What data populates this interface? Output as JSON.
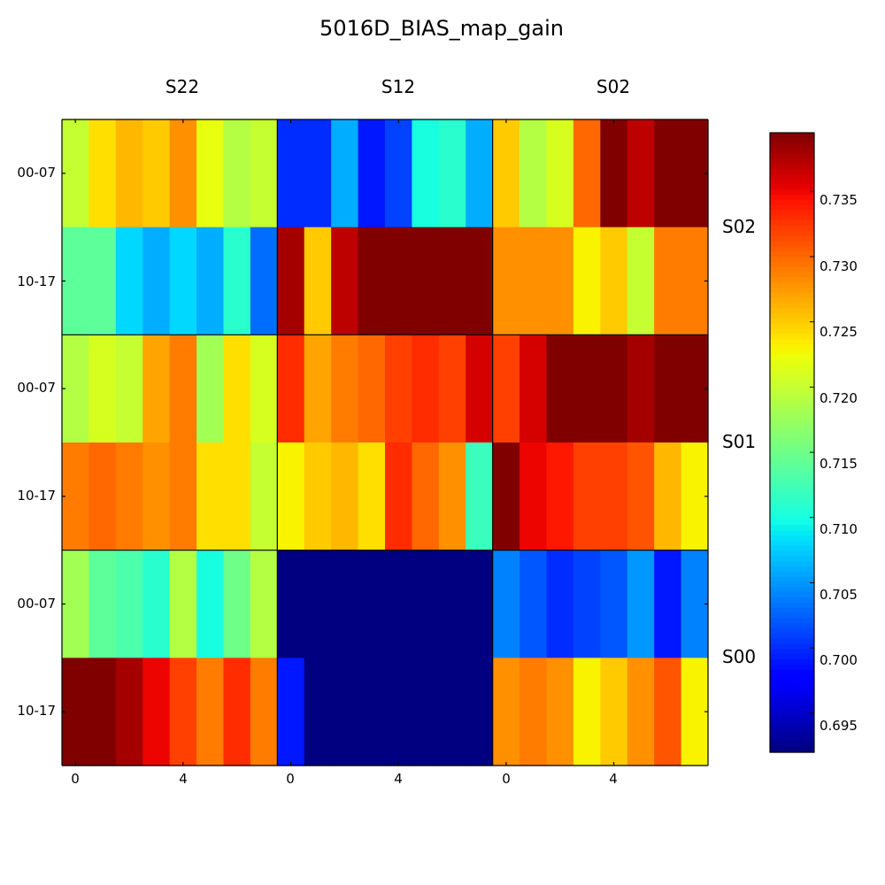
{
  "chart_data": {
    "type": "heatmap",
    "title": "5016D_BIAS_map_gain",
    "columns": [
      "S22",
      "S12",
      "S02"
    ],
    "rows": [
      "S02",
      "S01",
      "S00"
    ],
    "row_tick_labels": [
      "00-07",
      "10-17"
    ],
    "x_tick_labels": [
      "0",
      "4"
    ],
    "colormap": "jet",
    "colorbar": {
      "vmin": 0.692,
      "vmax": 0.7395,
      "ticks": [
        "0.695",
        "0.700",
        "0.705",
        "0.710",
        "0.715",
        "0.720",
        "0.725",
        "0.730",
        "0.735"
      ]
    },
    "values": [
      [
        0.72,
        0.724,
        0.726,
        0.725,
        0.728,
        0.722,
        0.719,
        0.72,
        0.7,
        0.7,
        0.706,
        0.699,
        0.701,
        0.71,
        0.711,
        0.706,
        0.725,
        0.719,
        0.721,
        0.73,
        0.7395,
        0.737,
        0.7395,
        0.7395
      ],
      [
        0.714,
        0.714,
        0.708,
        0.706,
        0.708,
        0.706,
        0.711,
        0.703,
        0.738,
        0.725,
        0.737,
        0.7395,
        0.7395,
        0.7395,
        0.7395,
        0.7395,
        0.728,
        0.728,
        0.728,
        0.723,
        0.725,
        0.72,
        0.729,
        0.729
      ],
      [
        0.719,
        0.721,
        0.72,
        0.727,
        0.729,
        0.718,
        0.724,
        0.721,
        0.733,
        0.727,
        0.729,
        0.73,
        0.732,
        0.733,
        0.732,
        0.736,
        0.732,
        0.736,
        0.7395,
        0.7395,
        0.7395,
        0.738,
        0.7395,
        0.7395
      ],
      [
        0.729,
        0.73,
        0.729,
        0.728,
        0.729,
        0.724,
        0.724,
        0.72,
        0.723,
        0.725,
        0.726,
        0.724,
        0.733,
        0.73,
        0.728,
        0.712,
        0.7395,
        0.735,
        0.734,
        0.732,
        0.732,
        0.731,
        0.726,
        0.723
      ],
      [
        0.718,
        0.714,
        0.713,
        0.711,
        0.719,
        0.71,
        0.715,
        0.719,
        0.692,
        0.692,
        0.692,
        0.692,
        0.692,
        0.692,
        0.692,
        0.692,
        0.704,
        0.702,
        0.7,
        0.701,
        0.702,
        0.705,
        0.699,
        0.704
      ],
      [
        0.7395,
        0.7395,
        0.738,
        0.735,
        0.732,
        0.729,
        0.733,
        0.729,
        0.699,
        0.692,
        0.692,
        0.692,
        0.692,
        0.692,
        0.692,
        0.692,
        0.728,
        0.729,
        0.728,
        0.723,
        0.725,
        0.728,
        0.731,
        0.723
      ]
    ]
  }
}
